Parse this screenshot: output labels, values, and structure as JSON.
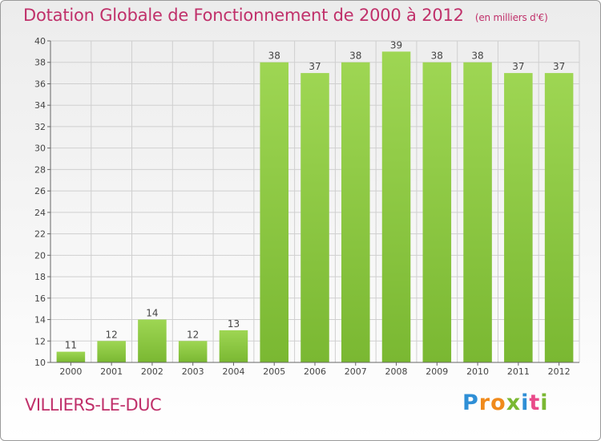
{
  "chart_data": {
    "type": "bar",
    "title": "Dotation Globale de Fonctionnement de 2000 à 2012",
    "subtitle": "(en milliers d'€)",
    "xlabel": "",
    "ylabel": "",
    "categories": [
      "2000",
      "2001",
      "2002",
      "2003",
      "2004",
      "2005",
      "2006",
      "2007",
      "2008",
      "2009",
      "2010",
      "2011",
      "2012"
    ],
    "values": [
      11,
      12,
      14,
      12,
      13,
      38,
      37,
      38,
      39,
      38,
      38,
      37,
      37
    ],
    "ylim": [
      10,
      40
    ],
    "yticks": [
      10,
      12,
      14,
      16,
      18,
      20,
      22,
      24,
      26,
      28,
      30,
      32,
      34,
      36,
      38,
      40
    ],
    "grid": true,
    "bar_color": "#7ab832",
    "bar_color_light": "#9ed653",
    "grid_color": "#cfcfcf"
  },
  "footer": {
    "commune": "VILLIERS-LE-DUC",
    "logo_text": "Proxiti",
    "logo_colors": [
      "#2f8fd6",
      "#f08a1c",
      "#f08a1c",
      "#7ab832",
      "#2f8fd6",
      "#e94a8a",
      "#7ab832"
    ]
  },
  "colors": {
    "title": "#c0306a",
    "axis_text": "#444444"
  }
}
